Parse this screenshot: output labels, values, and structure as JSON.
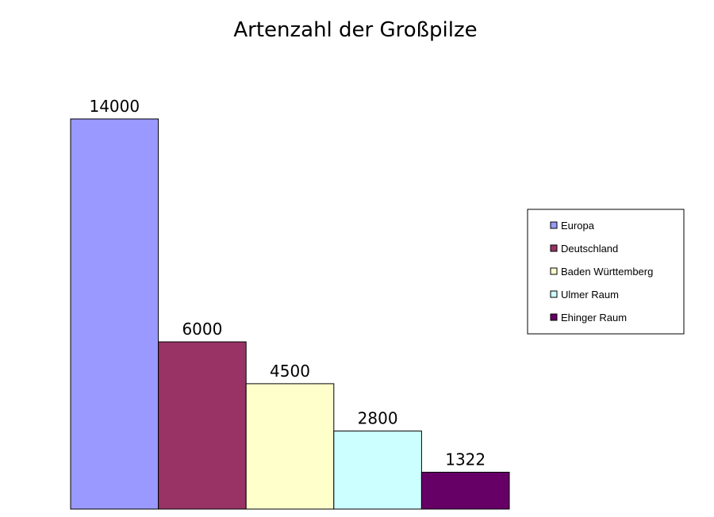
{
  "chart_data": {
    "type": "bar",
    "title": "Artenzahl der Großpilze",
    "xlabel": "",
    "ylabel": "",
    "ylim": [
      0,
      14000
    ],
    "grid": false,
    "legend_position": "right",
    "series": [
      {
        "name": "Europa",
        "value": 14000,
        "color": "#9999ff"
      },
      {
        "name": "Deutschland",
        "value": 6000,
        "color": "#993366"
      },
      {
        "name": "Baden Württemberg",
        "value": 4500,
        "color": "#ffffcc"
      },
      {
        "name": "Ulmer Raum",
        "value": 2800,
        "color": "#ccffff"
      },
      {
        "name": "Ehinger Raum",
        "value": 1322,
        "color": "#660066"
      }
    ]
  }
}
